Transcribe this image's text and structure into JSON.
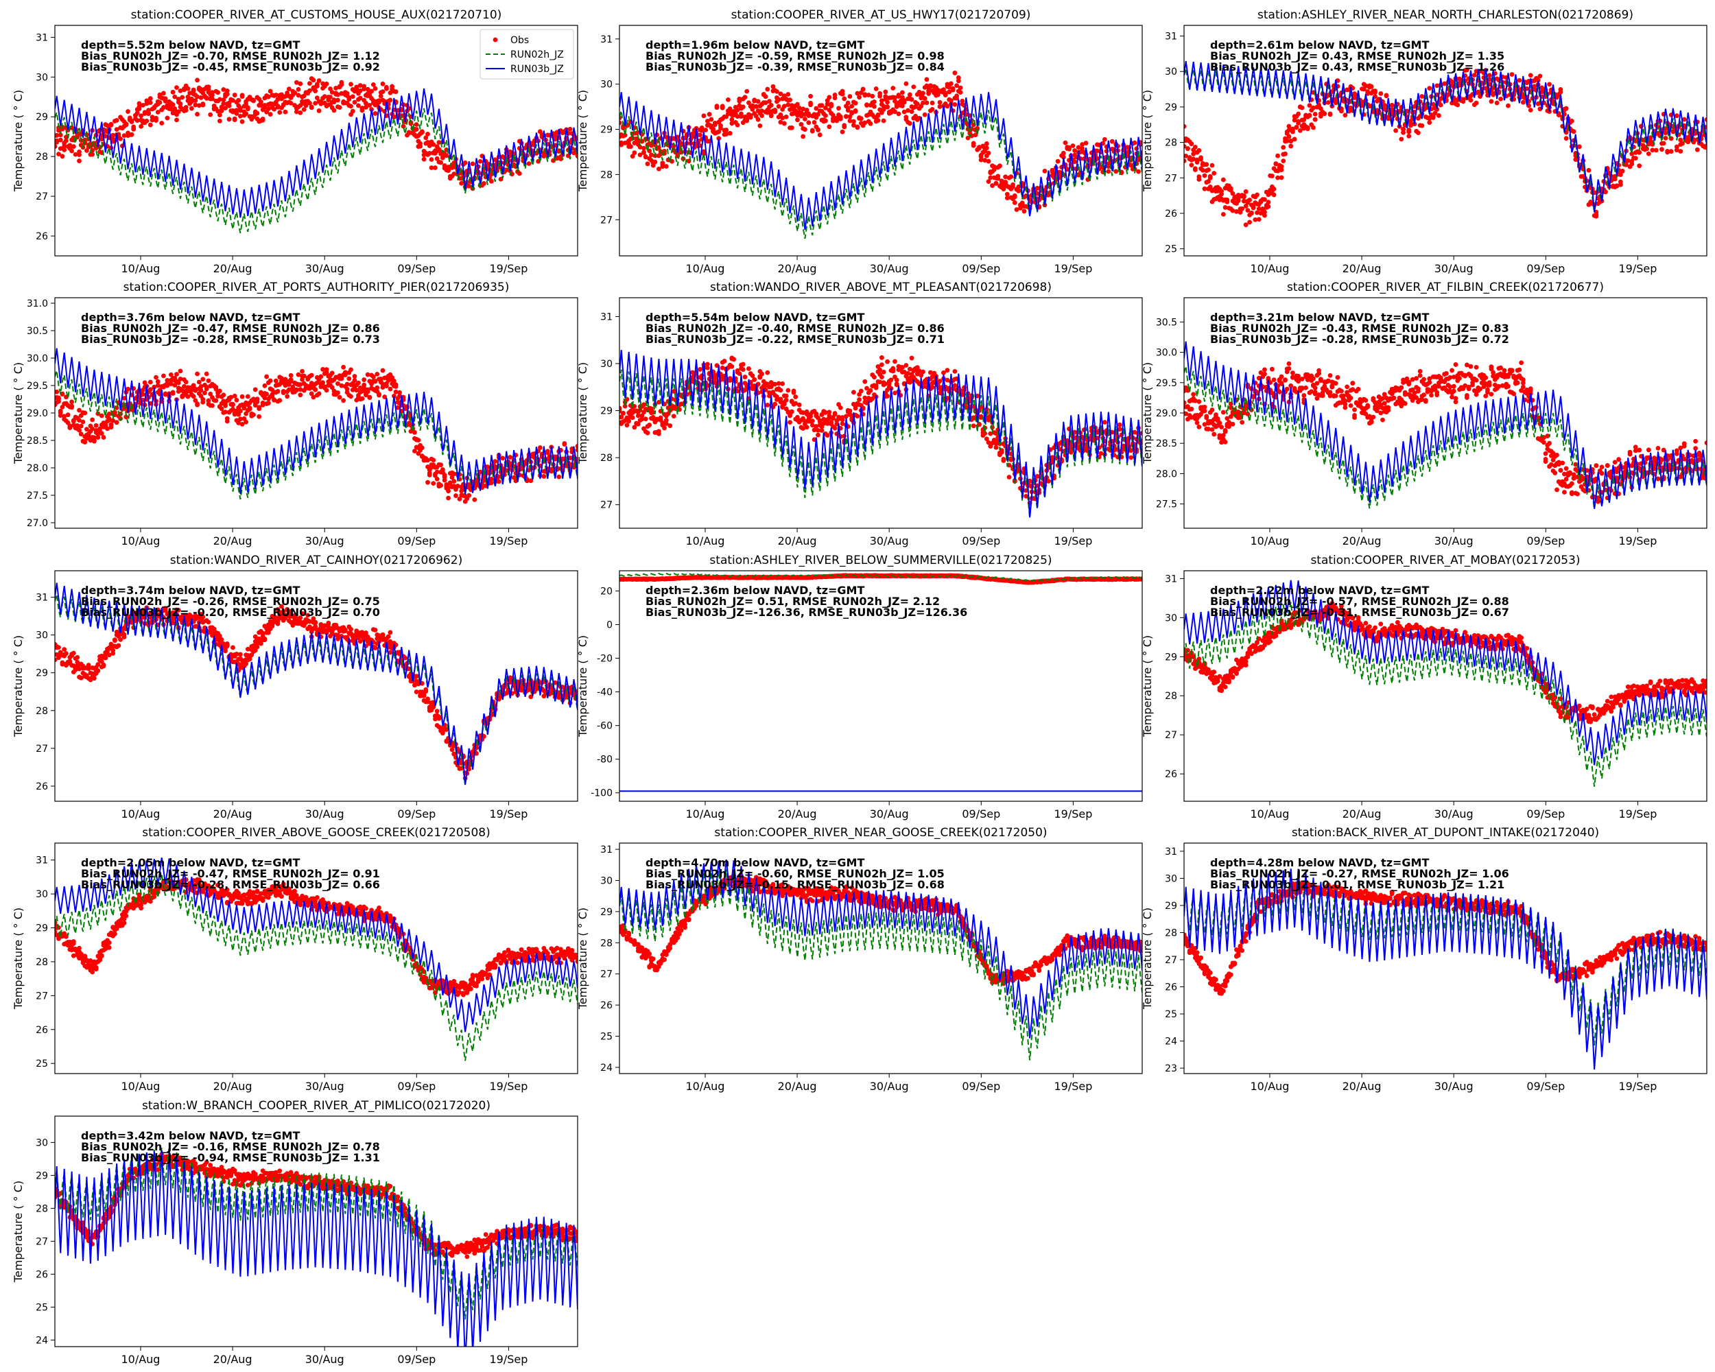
{
  "figure": {
    "y_axis_label": "Temperature ( ° C)",
    "x_tick_labels": [
      "10/Aug",
      "20/Aug",
      "30/Aug",
      "09/Sep",
      "19/Sep"
    ],
    "legend": [
      {
        "label": "Obs",
        "marker": "dot",
        "color": "#ff0000"
      },
      {
        "label": "RUN02h_JZ",
        "marker": "dashed",
        "color": "#008000"
      },
      {
        "label": "RUN03b_JZ",
        "marker": "solid",
        "color": "#0000ff"
      }
    ]
  },
  "chart_data": [
    {
      "type": "line",
      "title": "station:COOPER_RIVER_AT_CUSTOMS_HOUSE_AUX(021720710)",
      "stats": [
        "depth=5.52m below NAVD, tz=GMT",
        "Bias_RUN02h_JZ= -0.70, RMSE_RUN02h_JZ=  1.12",
        "Bias_RUN03b_JZ= -0.45, RMSE_RUN03b_JZ=  0.92"
      ],
      "ylim": [
        25.5,
        31.3
      ],
      "yticks": [
        26,
        27,
        28,
        29,
        30,
        31
      ],
      "obs": [
        28.4,
        28.3,
        28.8,
        29.3,
        29.5,
        29.2,
        29.4,
        29.6,
        29.5,
        29.4,
        28.2,
        27.4,
        27.8,
        28.3,
        28.3
      ],
      "run02h": [
        28.9,
        28.3,
        27.6,
        27.4,
        26.8,
        26.3,
        26.6,
        27.3,
        28.2,
        28.7,
        29.0,
        27.3,
        27.7,
        28.1,
        28.2
      ],
      "run03b": [
        29.2,
        28.7,
        28.0,
        27.7,
        27.2,
        26.8,
        27.1,
        27.8,
        28.6,
        29.1,
        29.4,
        27.5,
        27.9,
        28.3,
        28.4
      ],
      "obs_spread": 1.0,
      "run02h_amp": 0.25,
      "run03b_amp": 0.35,
      "legend": true
    },
    {
      "type": "line",
      "title": "station:COOPER_RIVER_AT_US_HWY17(021720709)",
      "stats": [
        "depth=1.96m below NAVD, tz=GMT",
        "Bias_RUN02h_JZ= -0.59, RMSE_RUN02h_JZ=  0.98",
        "Bias_RUN03b_JZ= -0.39, RMSE_RUN03b_JZ=  0.84"
      ],
      "ylim": [
        26.2,
        31.3
      ],
      "yticks": [
        27,
        28,
        29,
        30,
        31
      ],
      "obs": [
        29.0,
        28.5,
        28.7,
        29.3,
        29.5,
        29.3,
        29.4,
        29.5,
        29.6,
        29.8,
        28.0,
        27.4,
        28.3,
        28.4,
        28.4
      ],
      "run02h": [
        29.2,
        28.6,
        28.3,
        28.0,
        27.6,
        26.8,
        27.4,
        28.0,
        28.6,
        29.0,
        29.2,
        27.3,
        27.9,
        28.2,
        28.3
      ],
      "run03b": [
        29.5,
        29.0,
        28.7,
        28.3,
        28.0,
        27.1,
        27.7,
        28.3,
        28.9,
        29.3,
        29.5,
        27.4,
        28.1,
        28.4,
        28.5
      ],
      "obs_spread": 1.0,
      "run02h_amp": 0.25,
      "run03b_amp": 0.35,
      "legend": false
    },
    {
      "type": "line",
      "title": "station:ASHLEY_RIVER_NEAR_NORTH_CHARLESTON(021720869)",
      "stats": [
        "depth=2.61m below NAVD, tz=GMT",
        "Bias_RUN02h_JZ=  0.43, RMSE_RUN02h_JZ=  1.35",
        "Bias_RUN03b_JZ=  0.43, RMSE_RUN03b_JZ=  1.26"
      ],
      "ylim": [
        24.8,
        31.3
      ],
      "yticks": [
        25,
        26,
        27,
        28,
        29,
        30,
        31
      ],
      "obs": [
        28.0,
        26.5,
        26.0,
        28.5,
        29.3,
        29.2,
        28.5,
        29.4,
        29.6,
        29.5,
        29.3,
        26.2,
        27.8,
        28.3,
        28.1
      ],
      "run02h": [
        29.8,
        29.7,
        29.6,
        29.5,
        29.3,
        28.8,
        28.7,
        29.4,
        29.6,
        29.4,
        29.1,
        26.3,
        28.0,
        28.4,
        28.2
      ],
      "run03b": [
        29.9,
        29.8,
        29.7,
        29.6,
        29.4,
        28.9,
        28.8,
        29.5,
        29.7,
        29.5,
        29.2,
        26.4,
        28.2,
        28.6,
        28.3
      ],
      "obs_spread": 1.2,
      "run02h_amp": 0.3,
      "run03b_amp": 0.4,
      "legend": false
    },
    {
      "type": "line",
      "title": "station:COOPER_RIVER_AT_PORTS_AUTHORITY_PIER(0217206935)",
      "stats": [
        "depth=3.76m below NAVD, tz=GMT",
        "Bias_RUN02h_JZ= -0.47, RMSE_RUN02h_JZ=  0.86",
        "Bias_RUN03b_JZ= -0.28, RMSE_RUN03b_JZ=  0.73"
      ],
      "ylim": [
        26.9,
        31.1
      ],
      "yticks": [
        27.0,
        27.5,
        28.0,
        28.5,
        29.0,
        29.5,
        30.0,
        30.5,
        31.0
      ],
      "obs": [
        29.2,
        28.6,
        29.2,
        29.5,
        29.4,
        29.0,
        29.5,
        29.6,
        29.5,
        29.6,
        28.0,
        27.6,
        28.0,
        28.1,
        28.2
      ],
      "run02h": [
        29.6,
        29.2,
        29.0,
        28.8,
        28.3,
        27.6,
        27.9,
        28.3,
        28.6,
        28.8,
        28.9,
        27.7,
        27.9,
        28.0,
        28.0
      ],
      "run03b": [
        29.9,
        29.5,
        29.3,
        29.1,
        28.6,
        27.8,
        28.1,
        28.5,
        28.8,
        29.0,
        29.1,
        27.8,
        28.0,
        28.1,
        28.1
      ],
      "obs_spread": 0.7,
      "run02h_amp": 0.2,
      "run03b_amp": 0.3,
      "legend": false
    },
    {
      "type": "line",
      "title": "station:WANDO_RIVER_ABOVE_MT_PLEASANT(021720698)",
      "stats": [
        "depth=5.54m below NAVD, tz=GMT",
        "Bias_RUN02h_JZ= -0.40, RMSE_RUN02h_JZ=  0.86",
        "Bias_RUN03b_JZ= -0.22, RMSE_RUN03b_JZ=  0.71"
      ],
      "ylim": [
        26.5,
        31.4
      ],
      "yticks": [
        27,
        28,
        29,
        30,
        31
      ],
      "obs": [
        29.0,
        28.8,
        29.6,
        29.8,
        29.5,
        28.8,
        28.7,
        29.7,
        29.7,
        29.5,
        28.5,
        27.2,
        28.3,
        28.4,
        28.3
      ],
      "run02h": [
        29.5,
        29.3,
        29.3,
        29.1,
        28.6,
        27.5,
        28.0,
        28.6,
        28.9,
        29.0,
        28.9,
        27.1,
        28.2,
        28.3,
        28.2
      ],
      "run03b": [
        29.8,
        29.6,
        29.6,
        29.4,
        28.9,
        27.8,
        28.3,
        28.9,
        29.2,
        29.3,
        29.2,
        27.2,
        28.4,
        28.5,
        28.3
      ],
      "obs_spread": 0.9,
      "run02h_amp": 0.4,
      "run03b_amp": 0.5,
      "legend": false
    },
    {
      "type": "line",
      "title": "station:COOPER_RIVER_AT_FILBIN_CREEK(021720677)",
      "stats": [
        "depth=3.21m below NAVD, tz=GMT",
        "Bias_RUN02h_JZ= -0.43, RMSE_RUN02h_JZ=  0.83",
        "Bias_RUN03b_JZ= -0.28, RMSE_RUN03b_JZ=  0.72"
      ],
      "ylim": [
        27.1,
        30.9
      ],
      "yticks": [
        27.5,
        28.0,
        28.5,
        29.0,
        29.5,
        30.0,
        30.5
      ],
      "obs": [
        29.2,
        28.7,
        29.4,
        29.5,
        29.4,
        29.0,
        29.4,
        29.5,
        29.5,
        29.6,
        28.0,
        27.8,
        28.1,
        28.2,
        28.2
      ],
      "run02h": [
        29.6,
        29.2,
        29.0,
        28.8,
        28.2,
        27.6,
        28.0,
        28.4,
        28.6,
        28.8,
        28.8,
        27.6,
        27.9,
        28.0,
        28.0
      ],
      "run03b": [
        29.9,
        29.5,
        29.3,
        29.1,
        28.5,
        27.8,
        28.3,
        28.7,
        28.9,
        29.0,
        29.1,
        27.7,
        28.0,
        28.1,
        28.1
      ],
      "obs_spread": 0.7,
      "run02h_amp": 0.2,
      "run03b_amp": 0.3,
      "legend": false
    },
    {
      "type": "line",
      "title": "station:WANDO_RIVER_AT_CAINHOY(0217206962)",
      "stats": [
        "depth=3.74m below NAVD, tz=GMT",
        "Bias_RUN02h_JZ= -0.26, RMSE_RUN02h_JZ=  0.75",
        "Bias_RUN03b_JZ= -0.20, RMSE_RUN03b_JZ=  0.70"
      ],
      "ylim": [
        25.6,
        31.7
      ],
      "yticks": [
        26,
        27,
        28,
        29,
        30,
        31
      ],
      "obs": [
        29.6,
        28.9,
        30.4,
        30.5,
        30.3,
        29.2,
        30.6,
        30.2,
        30.0,
        29.8,
        28.2,
        26.4,
        28.6,
        28.6,
        28.4
      ],
      "run02h": [
        30.8,
        30.5,
        30.3,
        30.2,
        29.8,
        28.6,
        29.3,
        29.6,
        29.4,
        29.3,
        28.9,
        26.3,
        28.6,
        28.7,
        28.3
      ],
      "run03b": [
        31.0,
        30.6,
        30.4,
        30.3,
        29.9,
        28.7,
        29.4,
        29.7,
        29.5,
        29.4,
        29.0,
        26.4,
        28.7,
        28.8,
        28.4
      ],
      "obs_spread": 0.6,
      "run02h_amp": 0.3,
      "run03b_amp": 0.4,
      "legend": false
    },
    {
      "type": "line",
      "title": "station:ASHLEY_RIVER_BELOW_SUMMERVILLE(021720825)",
      "stats": [
        "depth=2.36m below NAVD, tz=GMT",
        "Bias_RUN02h_JZ=  0.51, RMSE_RUN02h_JZ=  2.12",
        "Bias_RUN03b_JZ=-126.36, RMSE_RUN03b_JZ=126.36"
      ],
      "ylim": [
        -105,
        32
      ],
      "yticks": [
        -100,
        -80,
        -60,
        -40,
        -20,
        0,
        20
      ],
      "obs": [
        27,
        27,
        28,
        28,
        28,
        28,
        29,
        29,
        29,
        29,
        27,
        25,
        27,
        27,
        27
      ],
      "run02h": [
        29,
        30,
        30,
        29,
        29,
        29,
        29,
        29,
        29,
        29,
        28,
        26,
        27,
        28,
        28
      ],
      "run03b": [
        -99,
        -99,
        -99,
        -99,
        -99,
        -99,
        -99,
        -99,
        -99,
        -99,
        -99,
        -99,
        -99,
        -99,
        -99
      ],
      "obs_spread": 0.6,
      "run02h_amp": 0.4,
      "run03b_amp": 0,
      "legend": false
    },
    {
      "type": "line",
      "title": "station:COOPER_RIVER_AT_MOBAY(02172053)",
      "stats": [
        "depth=2.22m below NAVD, tz=GMT",
        "Bias_RUN02h_JZ= -0.57, RMSE_RUN02h_JZ=  0.88",
        "Bias_RUN03b_JZ= -0.31, RMSE_RUN03b_JZ=  0.67"
      ],
      "ylim": [
        25.3,
        31.2
      ],
      "yticks": [
        26,
        27,
        28,
        29,
        30,
        31
      ],
      "obs": [
        29.1,
        28.3,
        29.3,
        30.0,
        30.2,
        29.6,
        29.7,
        29.5,
        29.4,
        29.3,
        27.7,
        27.5,
        28.1,
        28.2,
        28.2
      ],
      "run02h": [
        29.0,
        29.2,
        29.8,
        30.1,
        29.3,
        28.6,
        28.7,
        28.9,
        28.7,
        28.6,
        28.0,
        26.0,
        27.2,
        27.4,
        27.3
      ],
      "run03b": [
        29.7,
        29.8,
        30.3,
        30.6,
        29.8,
        29.2,
        29.3,
        29.3,
        29.1,
        29.0,
        28.4,
        26.6,
        27.6,
        27.8,
        27.7
      ],
      "obs_spread": 0.5,
      "run02h_amp": 0.35,
      "run03b_amp": 0.4,
      "legend": false
    },
    {
      "type": "line",
      "title": "station:COOPER_RIVER_ABOVE_GOOSE_CREEK(021720508)",
      "stats": [
        "depth=2.05m below NAVD, tz=GMT",
        "Bias_RUN02h_JZ= -0.47, RMSE_RUN02h_JZ=  0.91",
        "Bias_RUN03b_JZ= -0.28, RMSE_RUN03b_JZ=  0.66"
      ],
      "ylim": [
        24.7,
        31.5
      ],
      "yticks": [
        25,
        26,
        27,
        28,
        29,
        30,
        31
      ],
      "obs": [
        29.0,
        27.8,
        29.6,
        30.3,
        30.2,
        29.8,
        30.1,
        29.7,
        29.5,
        29.3,
        27.3,
        27.2,
        28.1,
        28.2,
        28.2
      ],
      "run02h": [
        29.0,
        29.3,
        30.0,
        30.3,
        29.2,
        28.5,
        28.8,
        28.9,
        28.8,
        28.5,
        27.6,
        25.4,
        27.0,
        27.4,
        27.1
      ],
      "run03b": [
        29.8,
        29.9,
        30.5,
        30.7,
        29.8,
        29.2,
        29.4,
        29.4,
        29.2,
        29.0,
        28.1,
        26.3,
        27.6,
        27.9,
        27.6
      ],
      "obs_spread": 0.5,
      "run02h_amp": 0.35,
      "run03b_amp": 0.4,
      "legend": false
    },
    {
      "type": "line",
      "title": "station:COOPER_RIVER_NEAR_GOOSE_CREEK(02172050)",
      "stats": [
        "depth=4.70m below NAVD, tz=GMT",
        "Bias_RUN02h_JZ= -0.60, RMSE_RUN02h_JZ=  1.05",
        "Bias_RUN03b_JZ= -0.15, RMSE_RUN03b_JZ=  0.68"
      ],
      "ylim": [
        23.8,
        31.2
      ],
      "yticks": [
        24,
        25,
        26,
        27,
        28,
        29,
        30,
        31
      ],
      "obs": [
        28.5,
        27.2,
        29.2,
        30.0,
        29.8,
        29.5,
        29.6,
        29.3,
        29.2,
        29.1,
        26.8,
        27.0,
        28.0,
        28.0,
        27.9
      ],
      "run02h": [
        29.0,
        28.6,
        29.6,
        29.8,
        28.5,
        28.0,
        28.3,
        28.4,
        28.3,
        28.2,
        27.2,
        24.8,
        26.9,
        27.2,
        27.0
      ],
      "run03b": [
        29.2,
        29.0,
        29.9,
        30.1,
        29.2,
        28.8,
        29.0,
        29.1,
        29.0,
        28.8,
        27.8,
        25.5,
        27.6,
        27.9,
        27.7
      ],
      "obs_spread": 0.5,
      "run02h_amp": 0.6,
      "run03b_amp": 0.6,
      "legend": false
    },
    {
      "type": "line",
      "title": "station:BACK_RIVER_AT_DUPONT_INTAKE(02172040)",
      "stats": [
        "depth=4.28m below NAVD, tz=GMT",
        "Bias_RUN02h_JZ= -0.27, RMSE_RUN02h_JZ=  1.06",
        "Bias_RUN03b_JZ=  0.01, RMSE_RUN03b_JZ=  1.21"
      ],
      "ylim": [
        22.8,
        31.3
      ],
      "yticks": [
        23,
        24,
        25,
        26,
        27,
        28,
        29,
        30,
        31
      ],
      "obs": [
        27.8,
        25.8,
        29.0,
        29.6,
        29.5,
        29.3,
        29.2,
        29.1,
        29.0,
        28.8,
        26.3,
        26.8,
        27.6,
        27.8,
        27.5
      ],
      "run02h": [
        28.8,
        28.5,
        29.2,
        29.5,
        28.9,
        28.4,
        28.6,
        28.8,
        28.7,
        28.5,
        27.6,
        24.5,
        27.0,
        27.5,
        27.0
      ],
      "run03b": [
        28.6,
        28.3,
        29.0,
        29.3,
        28.5,
        28.0,
        28.2,
        28.4,
        28.3,
        28.1,
        27.2,
        24.0,
        26.6,
        27.1,
        26.6
      ],
      "obs_spread": 0.6,
      "run02h_amp": 0.7,
      "run03b_amp": 1.1,
      "legend": false
    },
    {
      "type": "line",
      "title": "station:W_BRANCH_COOPER_RIVER_AT_PIMLICO(02172020)",
      "stats": [
        "depth=3.42m below NAVD, tz=GMT",
        "Bias_RUN02h_JZ= -0.16, RMSE_RUN02h_JZ=  0.78",
        "Bias_RUN03b_JZ= -0.94, RMSE_RUN03b_JZ=  1.31"
      ],
      "ylim": [
        23.8,
        30.8
      ],
      "yticks": [
        24,
        25,
        26,
        27,
        28,
        29,
        30
      ],
      "obs": [
        28.5,
        27.0,
        29.0,
        29.5,
        29.2,
        28.9,
        29.0,
        28.8,
        28.6,
        28.5,
        26.8,
        26.7,
        27.2,
        27.3,
        27.2
      ],
      "run02h": [
        28.6,
        28.2,
        29.0,
        29.3,
        28.6,
        28.2,
        28.4,
        28.5,
        28.4,
        28.2,
        27.2,
        25.2,
        26.8,
        27.1,
        26.8
      ],
      "run03b": [
        28.0,
        27.6,
        28.3,
        28.5,
        27.7,
        27.2,
        27.4,
        27.5,
        27.4,
        27.2,
        26.4,
        24.6,
        26.2,
        26.5,
        26.2
      ],
      "obs_spread": 0.5,
      "run02h_amp": 0.6,
      "run03b_amp": 1.3,
      "legend": false
    }
  ]
}
